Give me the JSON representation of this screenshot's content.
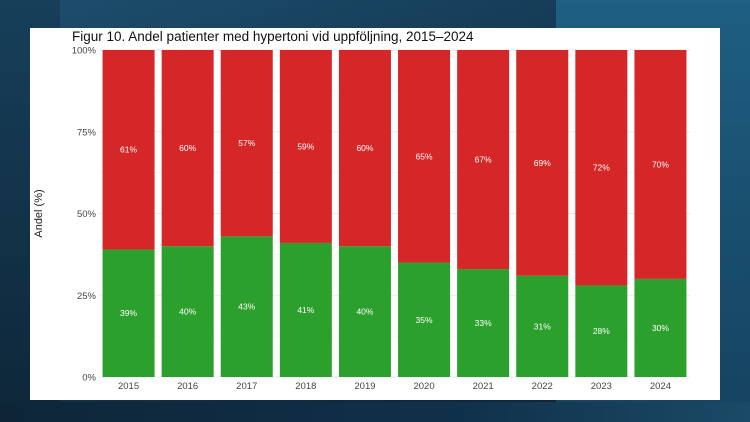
{
  "colors": {
    "bottom": "#2ca02c",
    "top": "#d62728",
    "grid": "#ebebeb",
    "axis_text": "#444444",
    "label_text": "#ffffff"
  },
  "chart_data": {
    "type": "bar",
    "stacked": true,
    "title": "Figur 10. Andel patienter med hypertoni vid uppföljning, 2015–2024",
    "xlabel": "",
    "ylabel": "Andel (%)",
    "ylim": [
      0,
      100
    ],
    "y_ticks": [
      "0%",
      "25%",
      "50%",
      "75%",
      "100%"
    ],
    "grid": true,
    "categories": [
      "2015",
      "2016",
      "2017",
      "2018",
      "2019",
      "2020",
      "2021",
      "2022",
      "2023",
      "2024"
    ],
    "series": [
      {
        "values": [
          39,
          40,
          43,
          41,
          40,
          35,
          33,
          31,
          28,
          30
        ],
        "labels": [
          "39%",
          "40%",
          "43%",
          "41%",
          "40%",
          "35%",
          "33%",
          "31%",
          "28%",
          "30%"
        ]
      },
      {
        "values": [
          61,
          60,
          57,
          59,
          60,
          65,
          67,
          69,
          72,
          70
        ],
        "labels": [
          "61%",
          "60%",
          "57%",
          "59%",
          "60%",
          "65%",
          "67%",
          "69%",
          "72%",
          "70%"
        ]
      }
    ]
  }
}
